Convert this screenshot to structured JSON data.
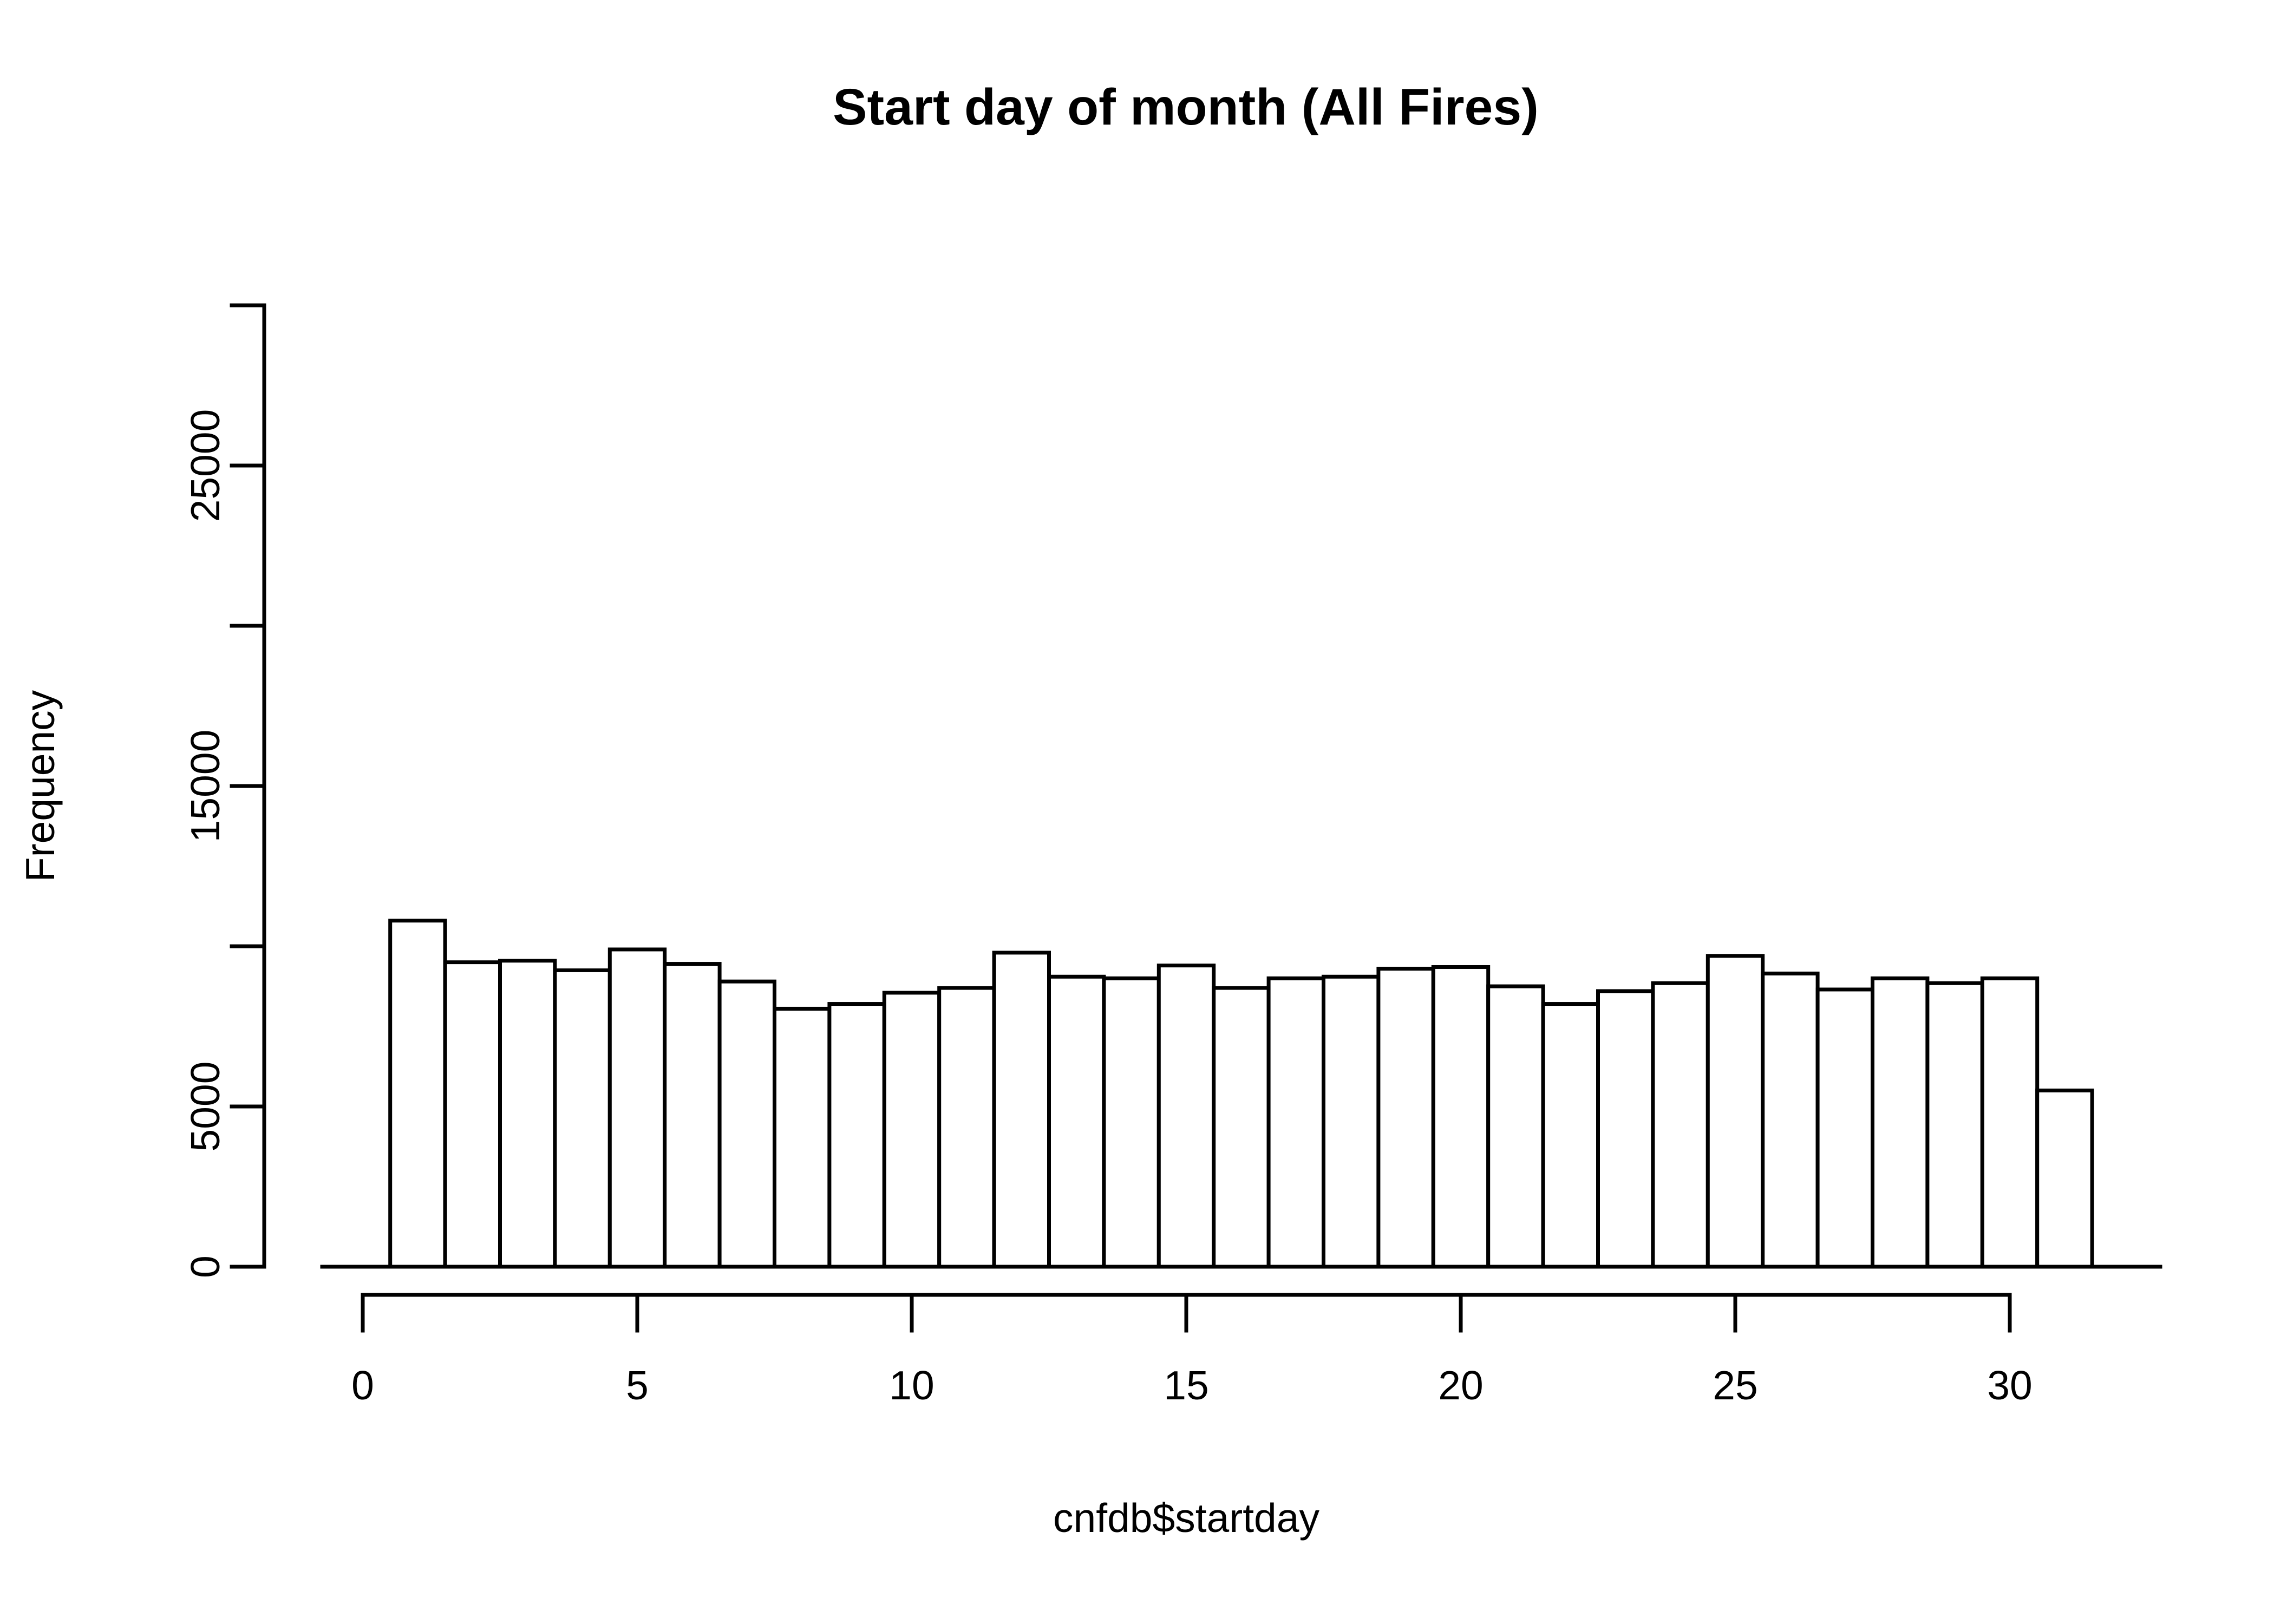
{
  "page": {
    "background_color": "#ffffff",
    "foreground_color": "#000000"
  },
  "chart_data": {
    "type": "bar",
    "chart_kind": "histogram",
    "title": "Start day of month (All Fires)",
    "xlabel": "cnfdb$startday",
    "ylabel": "Frequency",
    "categories": [
      1,
      2,
      3,
      4,
      5,
      6,
      7,
      8,
      9,
      10,
      11,
      12,
      13,
      14,
      15,
      16,
      17,
      18,
      19,
      20,
      21,
      22,
      23,
      24,
      25,
      26,
      27,
      28,
      29,
      30,
      31
    ],
    "values": [
      10800,
      9500,
      9550,
      9250,
      9900,
      9450,
      8900,
      8050,
      8200,
      8550,
      8700,
      9800,
      9050,
      9000,
      9400,
      8700,
      9000,
      9050,
      9300,
      9350,
      8750,
      8200,
      8600,
      8850,
      9700,
      9150,
      8650,
      9000,
      8850,
      9000,
      5500
    ],
    "bin_width": 1,
    "bin_start": 0.5,
    "xlim": [
      0,
      31.5
    ],
    "ylim": [
      0,
      30000
    ],
    "x_tick_values": [
      0,
      5,
      10,
      15,
      20,
      25,
      30
    ],
    "x_tick_labels": [
      "0",
      "5",
      "10",
      "15",
      "20",
      "25",
      "30"
    ],
    "y_tick_values": [
      0,
      5000,
      10000,
      15000,
      20000,
      25000,
      30000
    ],
    "y_labeled_tick_values": [
      0,
      5000,
      15000,
      25000
    ],
    "y_tick_labels": [
      "0",
      "5000",
      "15000",
      "25000"
    ],
    "grid": false,
    "legend_position": "none",
    "bar_fill": "#ffffff",
    "bar_stroke": "#000000"
  }
}
